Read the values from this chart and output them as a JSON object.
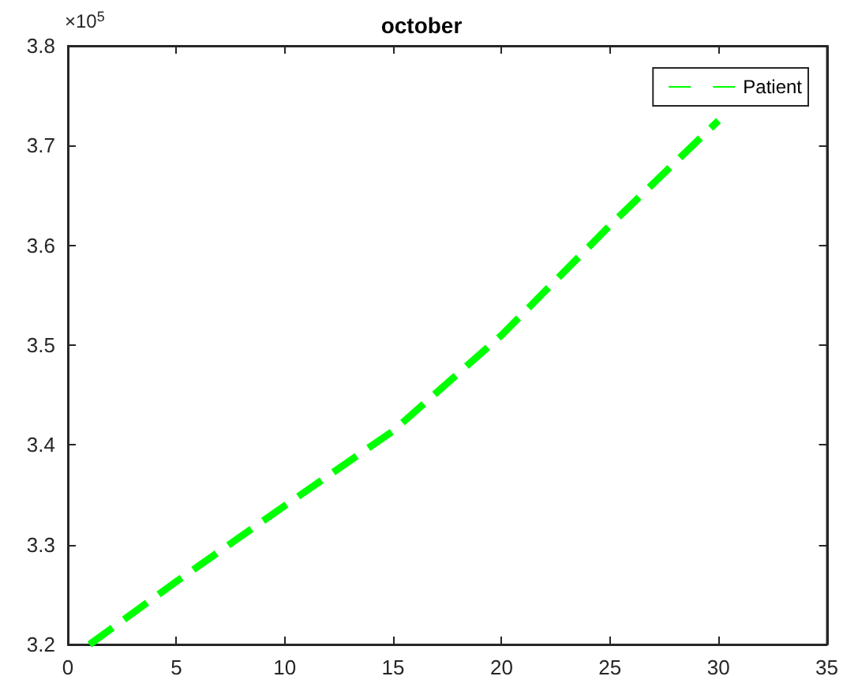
{
  "chart_data": {
    "type": "line",
    "title": "october",
    "x": [
      1,
      5,
      10,
      15,
      20,
      25,
      30
    ],
    "series": [
      {
        "name": "Patient",
        "color": "#00ff00",
        "values": [
          3.2,
          3.263,
          3.339,
          3.414,
          3.51,
          3.62,
          3.725
        ]
      }
    ],
    "xlim": [
      0,
      35
    ],
    "xticks": [
      0,
      5,
      10,
      15,
      20,
      25,
      30,
      35
    ],
    "ylim": [
      3.2,
      3.8
    ],
    "yticks": [
      3.2,
      3.3,
      3.4,
      3.5,
      3.6,
      3.7,
      3.8
    ],
    "annotations": [
      "×10$^{5}$"
    ],
    "grid": false,
    "legend": "top right",
    "marker": "none",
    "line_style": "dashed"
  }
}
